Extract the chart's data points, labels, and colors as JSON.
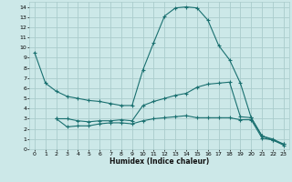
{
  "xlabel": "Humidex (Indice chaleur)",
  "bg_color": "#cce8e8",
  "grid_color": "#aacccc",
  "line_color": "#1a7070",
  "xlim": [
    -0.5,
    23.5
  ],
  "ylim": [
    0,
    14.5
  ],
  "xticks": [
    0,
    1,
    2,
    3,
    4,
    5,
    6,
    7,
    8,
    9,
    10,
    11,
    12,
    13,
    14,
    15,
    16,
    17,
    18,
    19,
    20,
    21,
    22,
    23
  ],
  "yticks": [
    0,
    1,
    2,
    3,
    4,
    5,
    6,
    7,
    8,
    9,
    10,
    11,
    12,
    13,
    14
  ],
  "series1_x": [
    0,
    1,
    2,
    3,
    4,
    5,
    6,
    7,
    8,
    9,
    10,
    11,
    12,
    13,
    14,
    15,
    16,
    17,
    18,
    19,
    20,
    21,
    22,
    23
  ],
  "series1_y": [
    9.5,
    6.5,
    5.7,
    5.2,
    5.0,
    4.8,
    4.7,
    4.5,
    4.3,
    4.3,
    7.8,
    10.5,
    13.1,
    13.9,
    14.0,
    13.9,
    12.7,
    10.2,
    8.8,
    6.5,
    3.1,
    1.3,
    0.9,
    0.5
  ],
  "series2_x": [
    2,
    3,
    4,
    5,
    6,
    7,
    8,
    9,
    10,
    11,
    12,
    13,
    14,
    15,
    16,
    17,
    18,
    19,
    20,
    21,
    22,
    23
  ],
  "series2_y": [
    3.0,
    3.0,
    2.8,
    2.7,
    2.8,
    2.8,
    2.9,
    2.8,
    4.3,
    4.7,
    5.0,
    5.3,
    5.5,
    6.1,
    6.4,
    6.5,
    6.6,
    3.2,
    3.1,
    1.3,
    1.0,
    0.5
  ],
  "series3_x": [
    2,
    3,
    4,
    5,
    6,
    7,
    8,
    9,
    10,
    11,
    12,
    13,
    14,
    15,
    16,
    17,
    18,
    19,
    20,
    21,
    22,
    23
  ],
  "series3_y": [
    3.0,
    2.2,
    2.3,
    2.3,
    2.5,
    2.6,
    2.6,
    2.5,
    2.8,
    3.0,
    3.1,
    3.2,
    3.3,
    3.1,
    3.1,
    3.1,
    3.1,
    2.9,
    2.9,
    1.1,
    0.9,
    0.4
  ]
}
